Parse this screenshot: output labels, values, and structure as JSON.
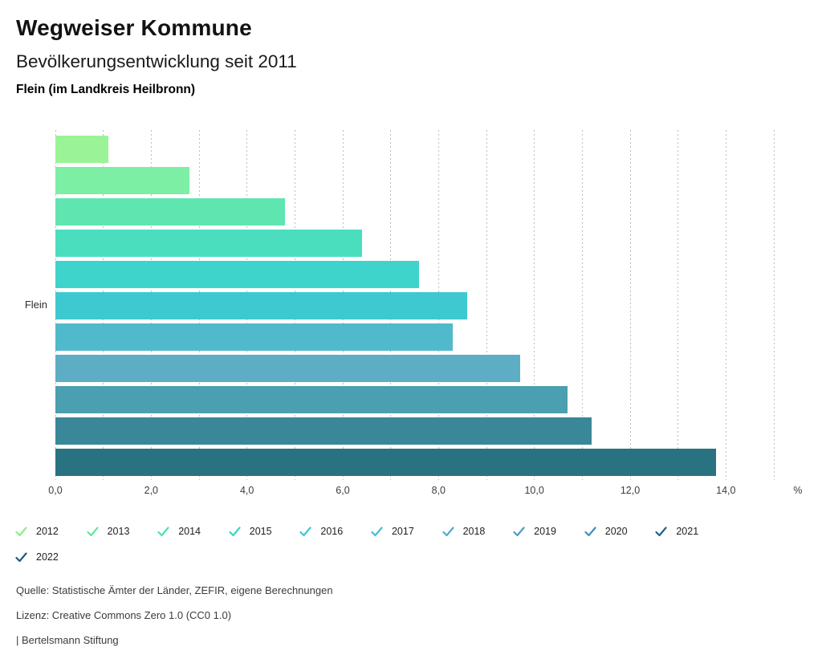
{
  "header": {
    "title": "Wegweiser Kommune",
    "subtitle": "Bevölkerungsentwicklung seit 2011",
    "region": "Flein (im Landkreis Heilbronn)"
  },
  "chart_data": {
    "type": "bar",
    "orientation": "horizontal",
    "title": "Bevölkerungsentwicklung seit 2011",
    "group_label": "Flein",
    "unit": "%",
    "xlim": [
      0,
      15
    ],
    "gridline_step": 1,
    "grid_color": "#bdbdbd",
    "unit_axis_position": 15.5,
    "x_ticks": [
      {
        "value": 0,
        "label": "0,0"
      },
      {
        "value": 2,
        "label": "2,0"
      },
      {
        "value": 4,
        "label": "4,0"
      },
      {
        "value": 6,
        "label": "6,0"
      },
      {
        "value": 8,
        "label": "8,0"
      },
      {
        "value": 10,
        "label": "10,0"
      },
      {
        "value": 12,
        "label": "12,0"
      },
      {
        "value": 14,
        "label": "14,0"
      }
    ],
    "legend_row_break": 10,
    "series": [
      {
        "year": "2012",
        "value": 1.1,
        "color": "#9af497",
        "check_color": "#8cee8c"
      },
      {
        "year": "2013",
        "value": 2.8,
        "color": "#7cefa4",
        "check_color": "#63e89b"
      },
      {
        "year": "2014",
        "value": 4.8,
        "color": "#5fe6b0",
        "check_color": "#4ee0b4"
      },
      {
        "year": "2015",
        "value": 6.4,
        "color": "#4adebf",
        "check_color": "#3dd6c6"
      },
      {
        "year": "2016",
        "value": 7.6,
        "color": "#3ed4cb",
        "check_color": "#3ac9d4"
      },
      {
        "year": "2017",
        "value": 8.6,
        "color": "#3ec8d0",
        "check_color": "#45bbd8"
      },
      {
        "year": "2018",
        "value": 8.3,
        "color": "#50b9cc",
        "check_color": "#4fabcf"
      },
      {
        "year": "2019",
        "value": 9.7,
        "color": "#5dadc4",
        "check_color": "#4c9dc2"
      },
      {
        "year": "2020",
        "value": 10.7,
        "color": "#4a9fb0",
        "check_color": "#4190b6"
      },
      {
        "year": "2021",
        "value": 11.2,
        "color": "#398799",
        "check_color": "#226289"
      },
      {
        "year": "2022",
        "value": 13.8,
        "color": "#297282",
        "check_color": "#1f5a7d"
      }
    ]
  },
  "footer": {
    "source": "Quelle: Statistische Ämter der Länder, ZEFIR, eigene Berechnungen",
    "license": "Lizenz: Creative Commons Zero 1.0 (CC0 1.0)",
    "attribution": "| Bertelsmann Stiftung"
  }
}
